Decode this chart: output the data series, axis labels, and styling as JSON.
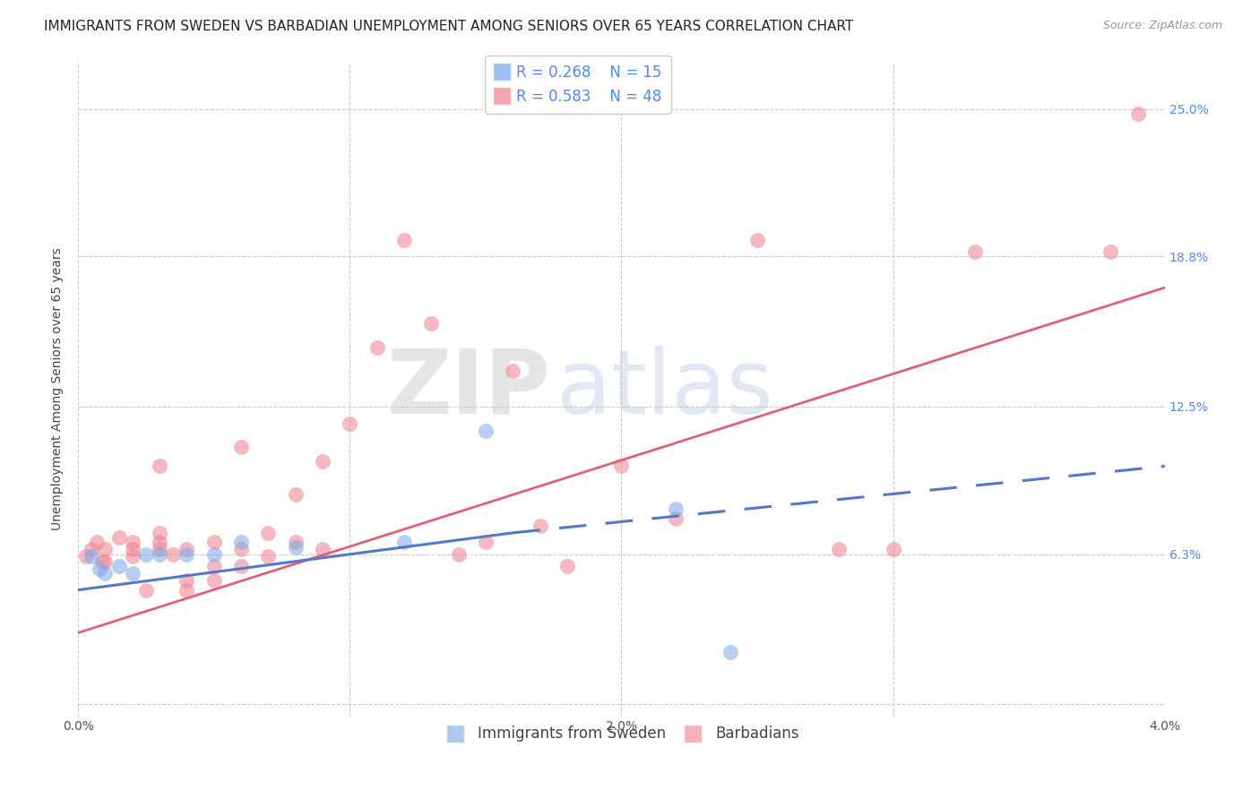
{
  "title": "IMMIGRANTS FROM SWEDEN VS BARBADIAN UNEMPLOYMENT AMONG SENIORS OVER 65 YEARS CORRELATION CHART",
  "source": "Source: ZipAtlas.com",
  "ylabel": "Unemployment Among Seniors over 65 years",
  "xlim": [
    0.0,
    0.04
  ],
  "ylim": [
    -0.005,
    0.27
  ],
  "yticks": [
    0.0,
    0.063,
    0.125,
    0.188,
    0.25
  ],
  "ytick_labels": [
    "",
    "6.3%",
    "12.5%",
    "18.8%",
    "25.0%"
  ],
  "xticks": [
    0.0,
    0.01,
    0.02,
    0.03,
    0.04
  ],
  "xtick_labels": [
    "0.0%",
    "",
    "2.0%",
    "",
    "4.0%"
  ],
  "grid_color": "#cccccc",
  "background_color": "#ffffff",
  "blue_color": "#7aa8e8",
  "pink_color": "#f08090",
  "blue_scatter": {
    "x": [
      0.0005,
      0.0008,
      0.001,
      0.0015,
      0.002,
      0.0025,
      0.003,
      0.004,
      0.005,
      0.006,
      0.008,
      0.012,
      0.015,
      0.022,
      0.024
    ],
    "y": [
      0.062,
      0.057,
      0.055,
      0.058,
      0.055,
      0.063,
      0.063,
      0.063,
      0.063,
      0.068,
      0.066,
      0.068,
      0.115,
      0.082,
      0.022
    ]
  },
  "pink_scatter": {
    "x": [
      0.0003,
      0.0005,
      0.0007,
      0.0009,
      0.001,
      0.001,
      0.0015,
      0.002,
      0.002,
      0.002,
      0.0025,
      0.003,
      0.003,
      0.003,
      0.003,
      0.0035,
      0.004,
      0.004,
      0.004,
      0.005,
      0.005,
      0.005,
      0.006,
      0.006,
      0.006,
      0.007,
      0.007,
      0.008,
      0.008,
      0.009,
      0.009,
      0.01,
      0.011,
      0.012,
      0.013,
      0.014,
      0.015,
      0.016,
      0.017,
      0.018,
      0.02,
      0.022,
      0.025,
      0.028,
      0.03,
      0.033,
      0.038,
      0.039
    ],
    "y": [
      0.062,
      0.065,
      0.068,
      0.06,
      0.06,
      0.065,
      0.07,
      0.062,
      0.065,
      0.068,
      0.048,
      0.065,
      0.068,
      0.072,
      0.1,
      0.063,
      0.065,
      0.048,
      0.052,
      0.068,
      0.058,
      0.052,
      0.108,
      0.065,
      0.058,
      0.062,
      0.072,
      0.068,
      0.088,
      0.102,
      0.065,
      0.118,
      0.15,
      0.195,
      0.16,
      0.063,
      0.068,
      0.14,
      0.075,
      0.058,
      0.1,
      0.078,
      0.195,
      0.065,
      0.065,
      0.19,
      0.19,
      0.248
    ]
  },
  "blue_line_solid": {
    "x": [
      0.0,
      0.016
    ],
    "y": [
      0.048,
      0.072
    ]
  },
  "blue_line_dashed": {
    "x": [
      0.016,
      0.04
    ],
    "y": [
      0.072,
      0.1
    ]
  },
  "pink_line": {
    "x": [
      0.0,
      0.04
    ],
    "y": [
      0.03,
      0.175
    ]
  },
  "legend_R_blue": "R = 0.268",
  "legend_N_blue": "N = 15",
  "legend_R_pink": "R = 0.583",
  "legend_N_pink": "N = 48",
  "legend_label1": "Immigrants from Sweden",
  "legend_label2": "Barbadians",
  "watermark_zip": "ZIP",
  "watermark_atlas": "atlas",
  "title_fontsize": 11,
  "axis_label_fontsize": 10,
  "tick_fontsize": 10,
  "legend_fontsize": 12,
  "right_tick_color": "#5588ee",
  "source_text": "Source: ZipAtlas.com"
}
